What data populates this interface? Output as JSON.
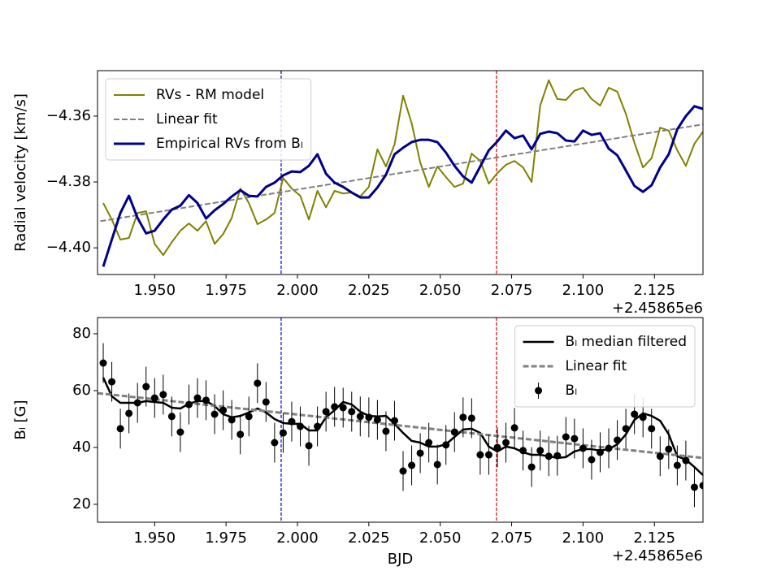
{
  "chart_data": [
    {
      "type": "line",
      "ylabel": "Radial velocity [km/s]",
      "x_offset_label": "+2.45865e6",
      "xlim": [
        1.93,
        2.142
      ],
      "ylim": [
        -4.4081,
        -4.3462
      ],
      "xticks": [
        {
          "value": 1.95,
          "label": "1.950"
        },
        {
          "value": 1.975,
          "label": "1.975"
        },
        {
          "value": 2.0,
          "label": "2.000"
        },
        {
          "value": 2.025,
          "label": "2.025"
        },
        {
          "value": 2.05,
          "label": "2.050"
        },
        {
          "value": 2.075,
          "label": "2.075"
        },
        {
          "value": 2.1,
          "label": "2.100"
        },
        {
          "value": 2.125,
          "label": "2.125"
        }
      ],
      "yticks": [
        {
          "value": -4.4,
          "label": "−4.40"
        },
        {
          "value": -4.38,
          "label": "−4.38"
        },
        {
          "value": -4.36,
          "label": "−4.36"
        }
      ],
      "legend": "upper left",
      "vlines": [
        {
          "x": 1.9943,
          "color": "#0000cc"
        },
        {
          "x": 2.0697,
          "color": "#dd0000"
        }
      ],
      "x": [
        1.932,
        1.935,
        1.938,
        1.941,
        1.944,
        1.947,
        1.95,
        1.953,
        1.956,
        1.959,
        1.962,
        1.965,
        1.968,
        1.971,
        1.974,
        1.977,
        1.98,
        1.983,
        1.986,
        1.989,
        1.992,
        1.995,
        1.998,
        2.001,
        2.004,
        2.007,
        2.01,
        2.013,
        2.016,
        2.019,
        2.022,
        2.025,
        2.028,
        2.031,
        2.034,
        2.037,
        2.04,
        2.043,
        2.046,
        2.049,
        2.052,
        2.055,
        2.058,
        2.061,
        2.064,
        2.067,
        2.07,
        2.073,
        2.076,
        2.079,
        2.082,
        2.085,
        2.088,
        2.091,
        2.094,
        2.097,
        2.1,
        2.103,
        2.106,
        2.109,
        2.112,
        2.115,
        2.118,
        2.121,
        2.124,
        2.127,
        2.13,
        2.133,
        2.136,
        2.139,
        2.142
      ],
      "series": [
        {
          "name": "RVs - RM model",
          "color": "#808000",
          "linestyle": "solid",
          "linewidth": 2,
          "values": [
            -4.3864,
            -4.3914,
            -4.3975,
            -4.397,
            -4.3894,
            -4.3889,
            -4.3988,
            -4.4022,
            -4.3983,
            -4.3948,
            -4.3926,
            -4.3948,
            -4.3919,
            -4.3988,
            -4.3958,
            -4.3909,
            -4.382,
            -4.3864,
            -4.3928,
            -4.3914,
            -4.3894,
            -4.3788,
            -4.382,
            -4.3842,
            -4.3914,
            -4.3827,
            -4.3877,
            -4.3827,
            -4.3835,
            -4.3832,
            -4.3844,
            -4.3815,
            -4.3701,
            -4.3753,
            -4.3686,
            -4.3538,
            -4.3622,
            -4.3741,
            -4.3815,
            -4.3753,
            -4.3785,
            -4.3815,
            -4.3805,
            -4.3714,
            -4.3736,
            -4.3805,
            -4.3773,
            -4.3748,
            -4.3736,
            -4.3756,
            -4.38,
            -4.3568,
            -4.3491,
            -4.3548,
            -4.3551,
            -4.3523,
            -4.3514,
            -4.3548,
            -4.3568,
            -4.3514,
            -4.3526,
            -4.3593,
            -4.3681,
            -4.3756,
            -4.3728,
            -4.3635,
            -4.3644,
            -4.3704,
            -4.3751,
            -4.3684,
            -4.3647
          ]
        },
        {
          "name": "Linear fit",
          "color": "#808080",
          "linestyle": "dashed",
          "linewidth": 2,
          "x": [
            1.931,
            2.142
          ],
          "values": [
            -4.3919,
            -4.3625
          ]
        },
        {
          "name": "Empirical RVs from Bₗ",
          "color": "#00008b",
          "linestyle": "solid",
          "linewidth": 3,
          "values": [
            -4.4057,
            -4.3975,
            -4.3894,
            -4.3842,
            -4.3909,
            -4.3956,
            -4.3948,
            -4.3914,
            -4.3884,
            -4.3872,
            -4.384,
            -4.3864,
            -4.3911,
            -4.3886,
            -4.3867,
            -4.3844,
            -4.3825,
            -4.3842,
            -4.3844,
            -4.3815,
            -4.3802,
            -4.378,
            -4.3768,
            -4.377,
            -4.3751,
            -4.3716,
            -4.3775,
            -4.3802,
            -4.3815,
            -4.3832,
            -4.3847,
            -4.3847,
            -4.3817,
            -4.3778,
            -4.3716,
            -4.3696,
            -4.3679,
            -4.3672,
            -4.3672,
            -4.3679,
            -4.3711,
            -4.3751,
            -4.3783,
            -4.3802,
            -4.3753,
            -4.3704,
            -4.3677,
            -4.3644,
            -4.3667,
            -4.3659,
            -4.3701,
            -4.3654,
            -4.3647,
            -4.3652,
            -4.3674,
            -4.3677,
            -4.3644,
            -4.3657,
            -4.3652,
            -4.3699,
            -4.3719,
            -4.3765,
            -4.3812,
            -4.383,
            -4.381,
            -4.3756,
            -4.3716,
            -4.364,
            -4.36,
            -4.357,
            -4.3578
          ]
        }
      ]
    },
    {
      "type": "line",
      "xlabel": "BJD",
      "ylabel": "Bₗ [G]",
      "x_offset_label": "+2.45865e6",
      "xlim": [
        1.93,
        2.142
      ],
      "ylim": [
        13.7,
        85.7
      ],
      "xticks": [
        {
          "value": 1.95,
          "label": "1.950"
        },
        {
          "value": 1.975,
          "label": "1.975"
        },
        {
          "value": 2.0,
          "label": "2.000"
        },
        {
          "value": 2.025,
          "label": "2.025"
        },
        {
          "value": 2.05,
          "label": "2.050"
        },
        {
          "value": 2.075,
          "label": "2.075"
        },
        {
          "value": 2.1,
          "label": "2.100"
        },
        {
          "value": 2.125,
          "label": "2.125"
        }
      ],
      "yticks": [
        20,
        40,
        60,
        80
      ],
      "legend": "upper right",
      "vlines": [
        {
          "x": 1.9943,
          "color": "#0000cc"
        },
        {
          "x": 2.0697,
          "color": "#dd0000"
        }
      ],
      "x": [
        1.932,
        1.935,
        1.938,
        1.941,
        1.944,
        1.947,
        1.95,
        1.953,
        1.956,
        1.959,
        1.962,
        1.965,
        1.968,
        1.971,
        1.974,
        1.977,
        1.98,
        1.983,
        1.986,
        1.989,
        1.992,
        1.995,
        1.998,
        2.001,
        2.004,
        2.007,
        2.01,
        2.013,
        2.016,
        2.019,
        2.022,
        2.025,
        2.028,
        2.031,
        2.034,
        2.037,
        2.04,
        2.043,
        2.046,
        2.049,
        2.052,
        2.055,
        2.058,
        2.061,
        2.064,
        2.067,
        2.07,
        2.073,
        2.076,
        2.079,
        2.082,
        2.085,
        2.088,
        2.091,
        2.094,
        2.097,
        2.1,
        2.103,
        2.106,
        2.109,
        2.112,
        2.115,
        2.118,
        2.121,
        2.124,
        2.127,
        2.13,
        2.133,
        2.136,
        2.139,
        2.142
      ],
      "series": [
        {
          "name": "Bₗ median filtered",
          "color": "#000000",
          "linestyle": "solid",
          "linewidth": 2.5,
          "values": [
            64.6,
            58.0,
            55.7,
            55.7,
            55.7,
            56.3,
            56.0,
            55.7,
            54.0,
            53.7,
            55.4,
            56.3,
            56.3,
            54.6,
            51.7,
            50.6,
            51.1,
            52.3,
            53.7,
            52.3,
            50.0,
            48.6,
            48.3,
            48.3,
            46.0,
            46.0,
            50.6,
            53.1,
            56.0,
            55.1,
            52.6,
            51.1,
            50.9,
            51.1,
            48.3,
            45.1,
            42.3,
            41.7,
            40.3,
            40.3,
            41.1,
            43.7,
            46.3,
            46.6,
            45.1,
            40.3,
            38.6,
            40.3,
            39.7,
            38.3,
            37.4,
            37.4,
            36.9,
            36.3,
            36.6,
            38.6,
            39.4,
            39.4,
            38.9,
            39.4,
            41.1,
            44.6,
            49.7,
            52.0,
            51.1,
            49.4,
            44.6,
            36.9,
            35.7,
            33.1,
            30.3
          ]
        },
        {
          "name": "Linear fit",
          "color": "#808080",
          "linestyle": "dashed",
          "linewidth": 3,
          "x": [
            1.93,
            2.142
          ],
          "values": [
            59.1,
            36.3
          ]
        },
        {
          "name": "Bₗ",
          "color": "#000000",
          "linestyle": "errorbar",
          "values": [
            69.7,
            63.1,
            46.6,
            52.0,
            55.7,
            61.4,
            57.4,
            58.6,
            50.9,
            45.4,
            55.1,
            57.4,
            56.6,
            51.7,
            53.1,
            49.7,
            44.6,
            50.9,
            62.6,
            56.0,
            41.7,
            45.1,
            49.1,
            47.4,
            40.6,
            47.4,
            52.6,
            54.3,
            54.0,
            52.6,
            50.9,
            50.6,
            49.7,
            45.7,
            49.4,
            31.7,
            33.7,
            38.0,
            41.7,
            34.0,
            40.9,
            45.4,
            50.6,
            50.3,
            37.4,
            37.4,
            40.0,
            41.7,
            46.9,
            38.9,
            33.1,
            38.9,
            36.9,
            37.1,
            43.7,
            43.1,
            39.7,
            35.7,
            38.3,
            39.7,
            42.6,
            46.6,
            51.7,
            50.6,
            46.6,
            36.9,
            39.4,
            33.7,
            35.4,
            26.0,
            26.6
          ],
          "errors": [
            7,
            7,
            7,
            7,
            7,
            7,
            7,
            7,
            7,
            7,
            7,
            7,
            7,
            7,
            7,
            7,
            7,
            7,
            7,
            7,
            7,
            7,
            7,
            7,
            7,
            7,
            7,
            7,
            7,
            7,
            7,
            7,
            7,
            7,
            7,
            7,
            7,
            7,
            7,
            7,
            7,
            7,
            7,
            7,
            7,
            7,
            7,
            7,
            7,
            7,
            7,
            7,
            7,
            7,
            7,
            7,
            7,
            7,
            7,
            7,
            7,
            7,
            7,
            7,
            7,
            7,
            7,
            7,
            7,
            7,
            7
          ]
        }
      ]
    }
  ]
}
